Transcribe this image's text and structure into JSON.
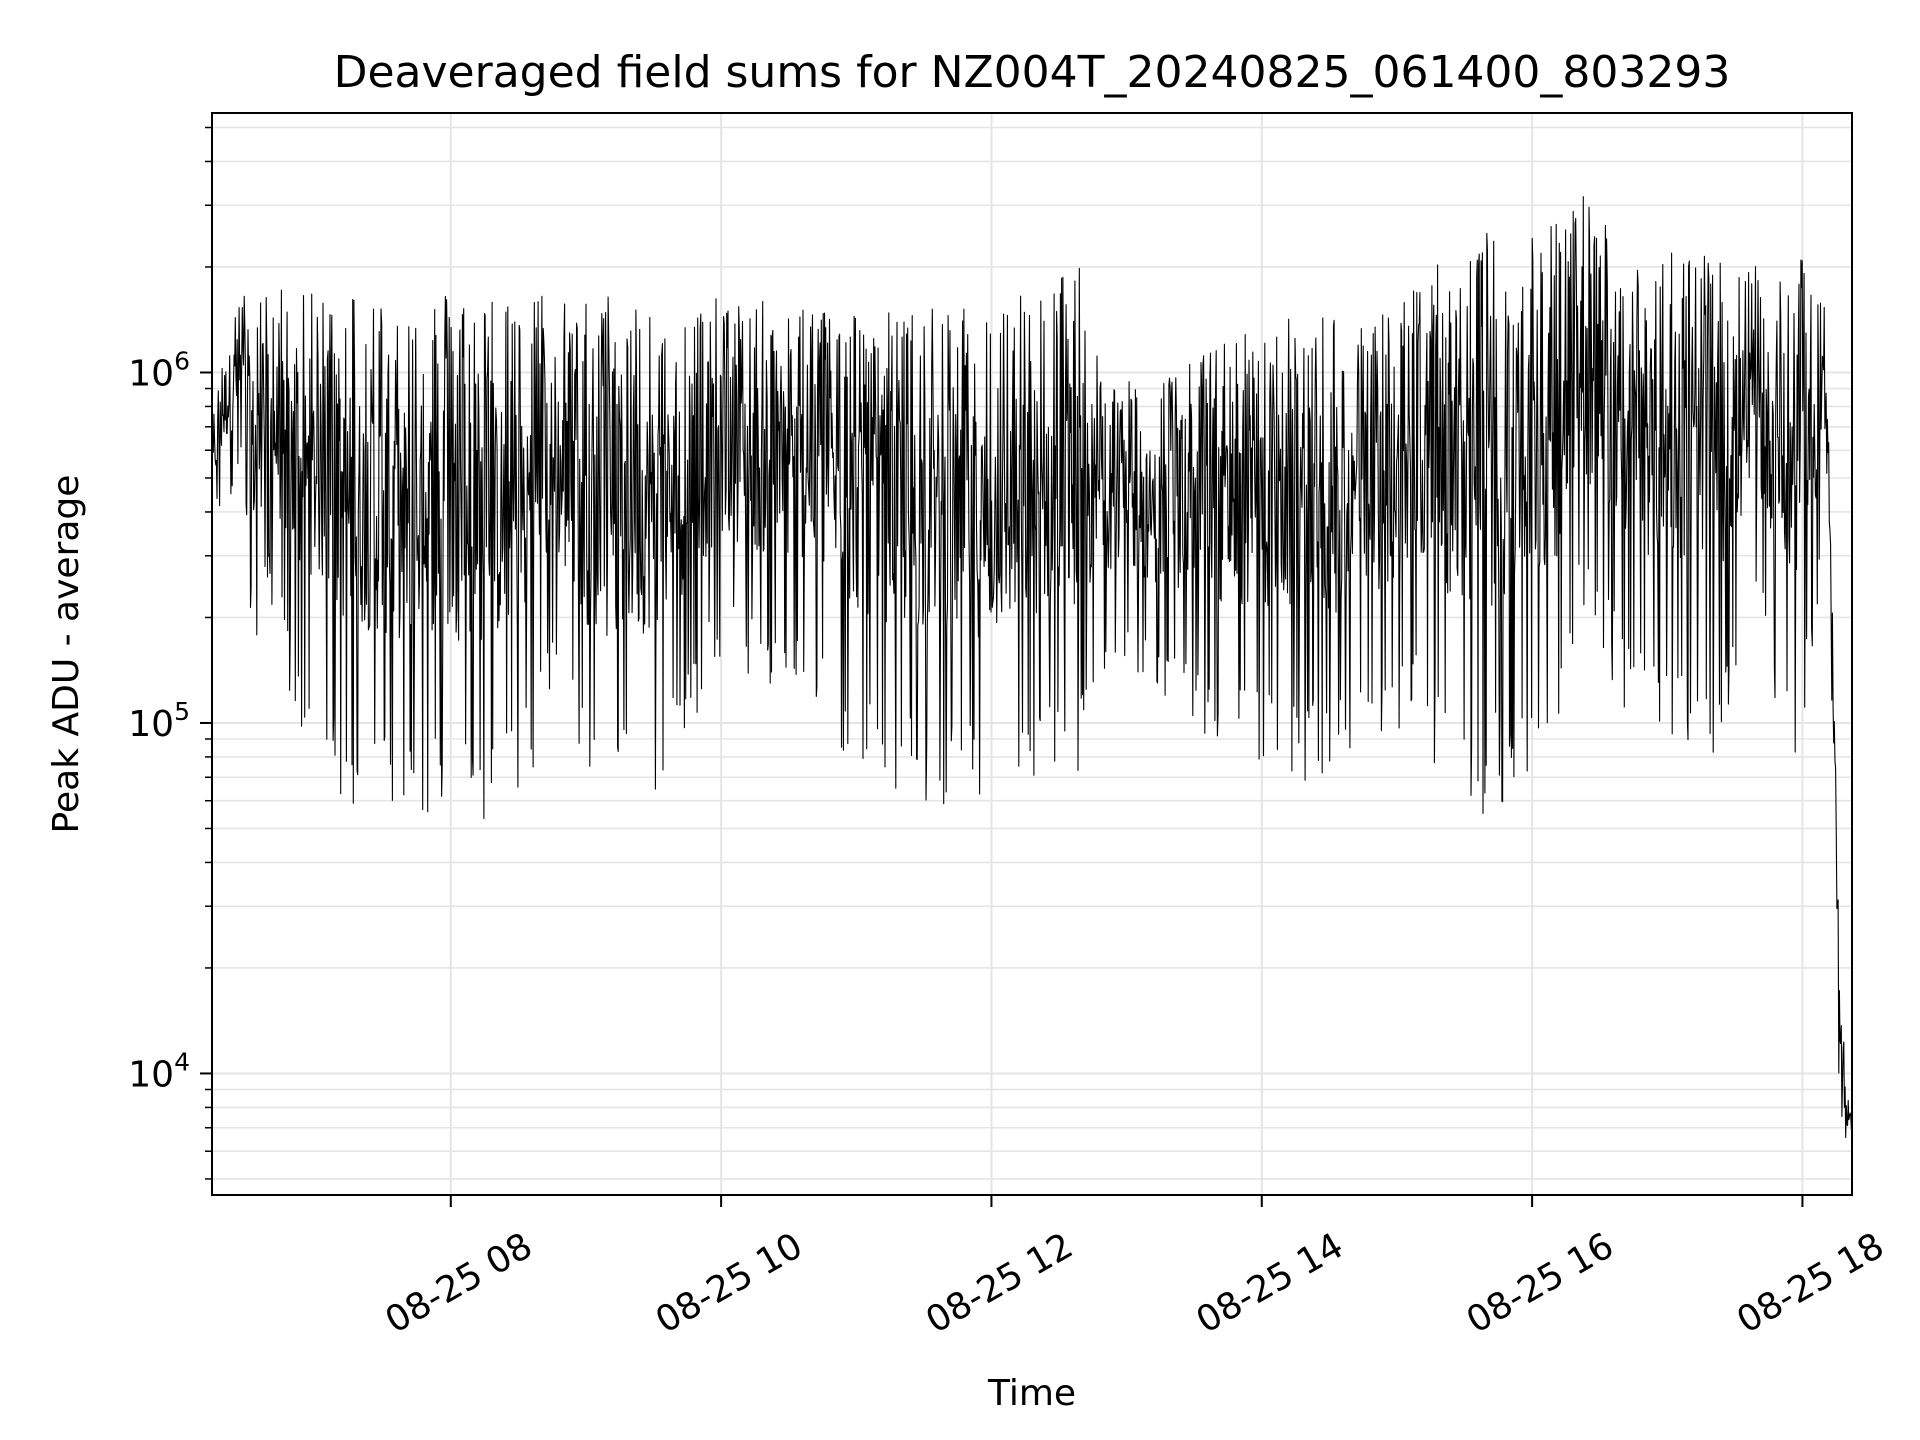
{
  "chart_data": {
    "type": "line",
    "title": "Deaveraged field sums for NZ004T_20240825_061400_803293",
    "xlabel": "Time",
    "ylabel": "Peak ADU - average",
    "x_axis": {
      "type": "time",
      "range": [
        "2024-08-25 06:14",
        "2024-08-25 18:22"
      ],
      "ticks": [
        {
          "t": "2024-08-25 08:00",
          "label": "08-25 08"
        },
        {
          "t": "2024-08-25 10:00",
          "label": "08-25 10"
        },
        {
          "t": "2024-08-25 12:00",
          "label": "08-25 12"
        },
        {
          "t": "2024-08-25 14:00",
          "label": "08-25 14"
        },
        {
          "t": "2024-08-25 16:00",
          "label": "08-25 16"
        },
        {
          "t": "2024-08-25 18:00",
          "label": "08-25 18"
        }
      ]
    },
    "y_axis": {
      "scale": "log",
      "range": [
        4500,
        5500000
      ],
      "ticks": [
        {
          "value": 10000,
          "base": "10",
          "exp": "4"
        },
        {
          "value": 100000,
          "base": "10",
          "exp": "5"
        },
        {
          "value": 1000000,
          "base": "10",
          "exp": "6"
        }
      ]
    },
    "grid": true,
    "line_color": "#000000",
    "grid_color": "#e5e5e5",
    "series": [
      {
        "x": [
          "2024-08-25 06:14",
          "2024-08-25 06:20",
          "2024-08-25 06:27",
          "2024-08-25 06:33",
          "2024-08-25 06:38",
          "2024-08-25 06:45",
          "2024-08-25 06:52",
          "2024-08-25 07:00",
          "2024-08-25 07:10",
          "2024-08-25 07:20",
          "2024-08-25 07:30",
          "2024-08-25 07:40",
          "2024-08-25 07:50",
          "2024-08-25 08:00",
          "2024-08-25 08:15",
          "2024-08-25 08:30",
          "2024-08-25 08:45",
          "2024-08-25 09:00",
          "2024-08-25 09:10",
          "2024-08-25 09:20",
          "2024-08-25 09:30",
          "2024-08-25 09:45",
          "2024-08-25 10:00",
          "2024-08-25 10:20",
          "2024-08-25 10:40",
          "2024-08-25 11:00",
          "2024-08-25 11:20",
          "2024-08-25 11:40",
          "2024-08-25 12:00",
          "2024-08-25 12:20",
          "2024-08-25 12:40",
          "2024-08-25 12:50",
          "2024-08-25 13:10",
          "2024-08-25 13:30",
          "2024-08-25 14:00",
          "2024-08-25 14:30",
          "2024-08-25 14:50",
          "2024-08-25 15:10",
          "2024-08-25 15:30",
          "2024-08-25 15:50",
          "2024-08-25 16:10",
          "2024-08-25 16:20",
          "2024-08-25 16:40",
          "2024-08-25 17:00",
          "2024-08-25 17:20",
          "2024-08-25 17:40",
          "2024-08-25 17:55",
          "2024-08-25 18:05",
          "2024-08-25 18:10",
          "2024-08-25 18:16",
          "2024-08-25 18:19",
          "2024-08-25 18:22"
        ],
        "y_low": [
          380000,
          400000,
          520000,
          140000,
          250000,
          150000,
          90000,
          100000,
          60000,
          55000,
          52000,
          50000,
          55000,
          50000,
          48000,
          52000,
          120000,
          60000,
          50000,
          52000,
          55000,
          90000,
          150000,
          120000,
          110000,
          70000,
          60000,
          55000,
          55000,
          60000,
          65000,
          140000,
          130000,
          90000,
          75000,
          65000,
          85000,
          95000,
          50000,
          60000,
          80000,
          200000,
          110000,
          90000,
          80000,
          200000,
          70000,
          150000,
          350000,
          8000,
          6500,
          6000
        ],
        "y_high": [
          700000,
          1400000,
          1700000,
          1600000,
          1700000,
          1800000,
          1650000,
          1700000,
          1750000,
          1800000,
          1700000,
          1650000,
          1700000,
          1750000,
          1700000,
          1750000,
          1700000,
          1650000,
          1700000,
          1650000,
          1750000,
          1500000,
          1650000,
          1600000,
          1600000,
          1550000,
          1500000,
          1550000,
          1500000,
          1900000,
          2000000,
          1000000,
          900000,
          1100000,
          1400000,
          1500000,
          1400000,
          1900000,
          2700000,
          2400000,
          2800000,
          3500000,
          2400000,
          2400000,
          2100000,
          2000000,
          2200000,
          2000000,
          1800000,
          40000,
          9000,
          8000
        ]
      }
    ]
  }
}
